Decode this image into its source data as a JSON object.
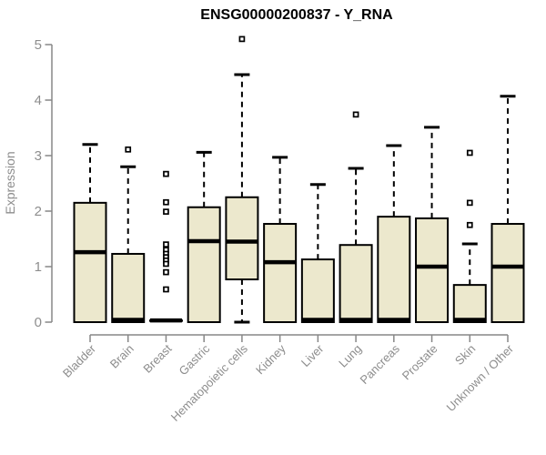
{
  "title": "ENSG00000200837 - Y_RNA",
  "chart_data": {
    "type": "boxplot",
    "title": "ENSG00000200837 - Y_RNA",
    "xlabel": "",
    "ylabel": "Expression",
    "ylim": [
      0,
      5
    ],
    "yticks": [
      0,
      1,
      2,
      3,
      4,
      5
    ],
    "grid": false,
    "legend": "none",
    "categories": [
      "Bladder",
      "Brain",
      "Breast",
      "Gastric",
      "Hematopoietic cells",
      "Kidney",
      "Liver",
      "Lung",
      "Pancreas",
      "Prostate",
      "Skin",
      "Unknown / Other"
    ],
    "series": [
      {
        "name": "Bladder",
        "low": 0,
        "q1": 0,
        "median": 1.26,
        "q3": 2.15,
        "high": 3.2,
        "outliers": []
      },
      {
        "name": "Brain",
        "low": 0,
        "q1": 0,
        "median": 0.04,
        "q3": 1.23,
        "high": 2.8,
        "outliers": [
          3.11
        ]
      },
      {
        "name": "Breast",
        "low": 0.03,
        "q1": 0.03,
        "median": 0.03,
        "q3": 0.03,
        "high": 0.03,
        "outliers": [
          2.67,
          2.16,
          1.99,
          1.4,
          1.3,
          1.23,
          1.17,
          1.11,
          1.05,
          0.9,
          0.59
        ]
      },
      {
        "name": "Gastric",
        "low": 0,
        "q1": 0,
        "median": 1.46,
        "q3": 2.07,
        "high": 3.06,
        "outliers": []
      },
      {
        "name": "Hematopoietic cells",
        "low": 0,
        "q1": 0.77,
        "median": 1.45,
        "q3": 2.25,
        "high": 4.46,
        "outliers": [
          5.1
        ]
      },
      {
        "name": "Kidney",
        "low": 0,
        "q1": 0,
        "median": 1.08,
        "q3": 1.77,
        "high": 2.97,
        "outliers": []
      },
      {
        "name": "Liver",
        "low": 0,
        "q1": 0,
        "median": 0.04,
        "q3": 1.13,
        "high": 2.48,
        "outliers": []
      },
      {
        "name": "Lung",
        "low": 0,
        "q1": 0,
        "median": 0.04,
        "q3": 1.39,
        "high": 2.77,
        "outliers": [
          3.74
        ]
      },
      {
        "name": "Pancreas",
        "low": 0,
        "q1": 0,
        "median": 0.04,
        "q3": 1.9,
        "high": 3.18,
        "outliers": []
      },
      {
        "name": "Prostate",
        "low": 0,
        "q1": 0,
        "median": 1.0,
        "q3": 1.87,
        "high": 3.51,
        "outliers": []
      },
      {
        "name": "Skin",
        "low": 0,
        "q1": 0,
        "median": 0.04,
        "q3": 0.67,
        "high": 1.41,
        "outliers": [
          3.05,
          2.15,
          1.75
        ]
      },
      {
        "name": "Unknown / Other",
        "low": 0,
        "q1": 0,
        "median": 1.0,
        "q3": 1.77,
        "high": 4.07,
        "outliers": []
      }
    ],
    "colors": {
      "box_fill": "#ECE8CD",
      "box_border": "#000000",
      "median": "#000000",
      "whisker": "#000000",
      "axis": "#878787",
      "tick_label": "#8d8d8d",
      "title": "#000000",
      "background": "#ffffff"
    }
  }
}
